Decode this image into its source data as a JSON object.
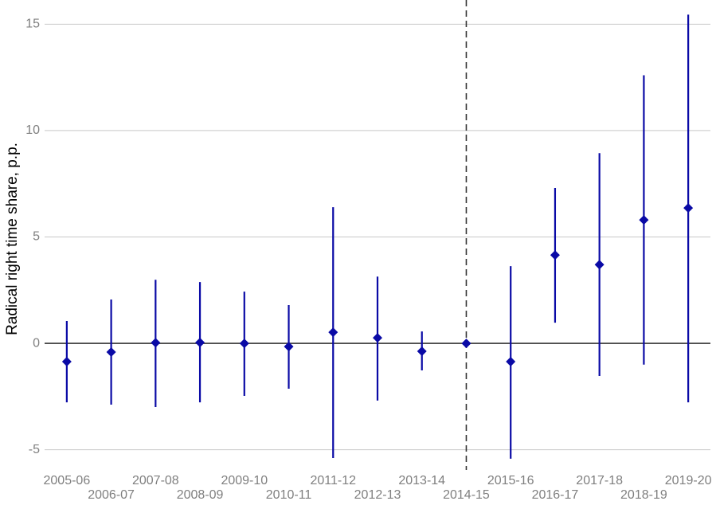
{
  "chart_data": {
    "type": "pointrange",
    "y_label": "Radical right time share, p.p.",
    "categories": [
      "2005-06",
      "2006-07",
      "2007-08",
      "2008-09",
      "2009-10",
      "2010-11",
      "2011-12",
      "2012-13",
      "2013-14",
      "2014-15",
      "2015-16",
      "2016-17",
      "2017-18",
      "2018-19",
      "2019-20"
    ],
    "values": [
      -0.86,
      -0.41,
      0.03,
      0.04,
      0.0,
      -0.15,
      0.52,
      0.26,
      -0.37,
      0.0,
      -0.86,
      4.15,
      3.7,
      5.8,
      6.36
    ],
    "lower": [
      -2.77,
      -2.88,
      -2.99,
      -2.77,
      -2.47,
      -2.13,
      -5.39,
      -2.69,
      -1.27,
      null,
      -5.42,
      0.97,
      -1.53,
      -1.0,
      -2.77
    ],
    "upper": [
      1.05,
      2.06,
      2.99,
      2.88,
      2.43,
      1.8,
      6.4,
      3.14,
      0.56,
      null,
      3.63,
      7.3,
      8.94,
      12.6,
      15.45
    ],
    "color": "#0a0aa6",
    "ylim": [
      -5.5,
      15.5
    ],
    "yticks": [
      -5,
      0,
      5,
      10,
      15
    ],
    "grid": true,
    "zero_line": true,
    "reference_category": "2014-15"
  }
}
